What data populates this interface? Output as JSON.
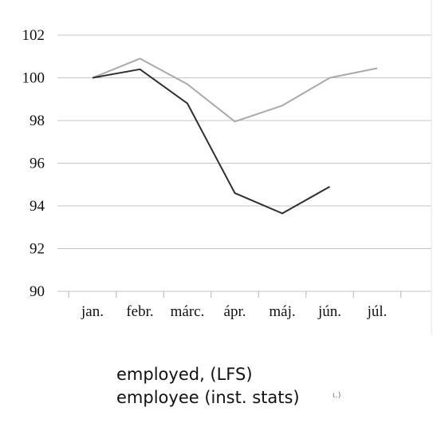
{
  "chart_data": {
    "type": "line",
    "title": "",
    "xlabel": "",
    "ylabel": "",
    "categories": [
      "jan.",
      "febr.",
      "márc.",
      "ápr.",
      "máj.",
      "jún.",
      "júl."
    ],
    "y_ticks": [
      "102",
      "100",
      "98",
      "96",
      "94",
      "92",
      "90"
    ],
    "ylim": [
      90,
      102
    ],
    "grid": true,
    "legend_position": "bottom",
    "series": [
      {
        "name": "employee (inst. stats)",
        "color": "#a9a9a9",
        "values": [
          100.0,
          100.9,
          99.7,
          97.95,
          98.7,
          100.0,
          100.45
        ]
      },
      {
        "name": "employed, (LFS)",
        "color": "#2f2f2f",
        "values": [
          100.0,
          100.4,
          98.8,
          94.6,
          93.65,
          94.9,
          null
        ]
      }
    ]
  },
  "legend": {
    "line1": "employed, (LFS)",
    "line2": "employee (inst. stats)"
  },
  "stray_mark": "ι.)"
}
